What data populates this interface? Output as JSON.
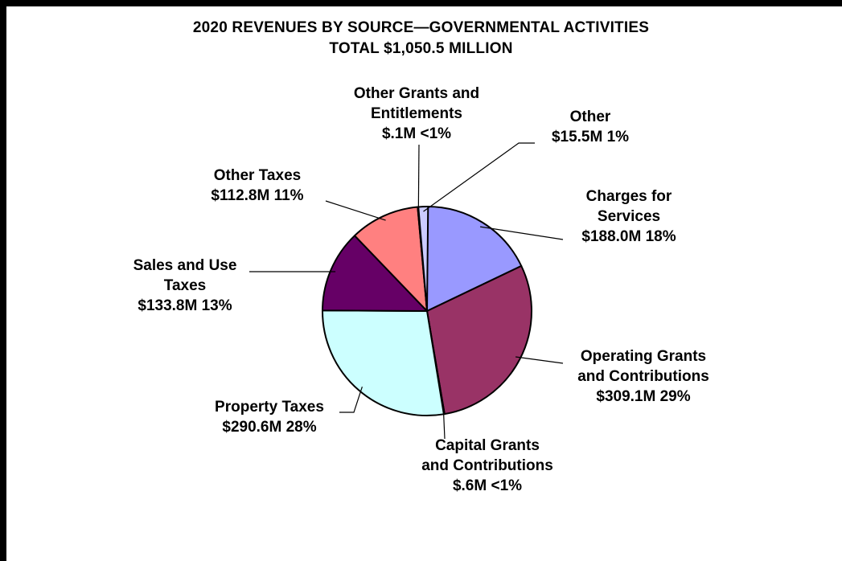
{
  "chart_data": {
    "type": "pie",
    "title": "2020 REVENUES BY SOURCE—GOVERNMENTAL ACTIVITIES",
    "subtitle": "TOTAL $1,050.5 MILLION",
    "unit": "$M",
    "slices": [
      {
        "name": "Charges for Services",
        "value": 188.0,
        "percent": "18%",
        "color": "#9999ff",
        "label_lines": [
          "Charges for",
          "Services",
          "$188.0M  18%"
        ]
      },
      {
        "name": "Operating Grants and Contributions",
        "value": 309.1,
        "percent": "29%",
        "color": "#993366",
        "label_lines": [
          "Operating Grants",
          "and Contributions",
          "$309.1M  29%"
        ]
      },
      {
        "name": "Capital Grants and Contributions",
        "value": 0.6,
        "percent": "<1%",
        "color": "#ffffcc",
        "label_lines": [
          "Capital Grants",
          "and Contributions",
          "$.6M  <1%"
        ]
      },
      {
        "name": "Property Taxes",
        "value": 290.6,
        "percent": "28%",
        "color": "#ccffff",
        "label_lines": [
          "Property Taxes",
          "$290.6M  28%"
        ]
      },
      {
        "name": "Sales and Use Taxes",
        "value": 133.8,
        "percent": "13%",
        "color": "#660066",
        "label_lines": [
          "Sales and Use",
          "Taxes",
          "$133.8M  13%"
        ]
      },
      {
        "name": "Other Taxes",
        "value": 112.8,
        "percent": "11%",
        "color": "#ff8080",
        "label_lines": [
          "Other Taxes",
          "$112.8M  11%"
        ]
      },
      {
        "name": "Other Grants and Entitlements",
        "value": 0.1,
        "percent": "<1%",
        "color": "#0066cc",
        "label_lines": [
          "Other  Grants and",
          "Entitlements",
          "$.1M  <1%"
        ]
      },
      {
        "name": "Other",
        "value": 15.5,
        "percent": "1%",
        "color": "#ccccff",
        "label_lines": [
          "Other",
          "$15.5M 1%"
        ]
      }
    ],
    "start_angle": "12 o'clock",
    "direction": "clockwise",
    "legend": "none"
  }
}
